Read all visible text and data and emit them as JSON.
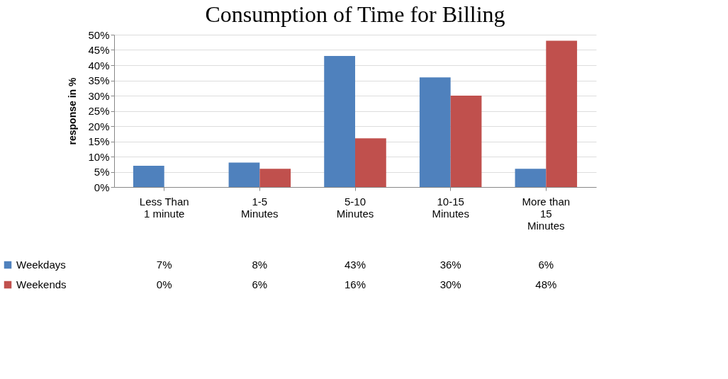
{
  "chart_data": {
    "type": "bar",
    "title": "Consumption of Time for Billing",
    "ylabel": "response in %",
    "categories": [
      "Less Than 1 minute",
      "1-5 Minutes",
      "5-10 Minutes",
      "10-15 Minutes",
      "More than 15 Minutes"
    ],
    "series": [
      {
        "name": "Weekdays",
        "color": "#4f81bd",
        "values": [
          7,
          8,
          43,
          36,
          6
        ],
        "value_labels": [
          "7%",
          "8%",
          "43%",
          "36%",
          "6%"
        ]
      },
      {
        "name": "Weekends",
        "color": "#c0504d",
        "values": [
          0,
          6,
          16,
          30,
          48
        ],
        "value_labels": [
          "0%",
          "6%",
          "16%",
          "30%",
          "48%"
        ]
      }
    ],
    "ylim": [
      0,
      50
    ],
    "yticks": [
      {
        "value": 0,
        "label": "0%"
      },
      {
        "value": 5,
        "label": "5%"
      },
      {
        "value": 10,
        "label": "10%"
      },
      {
        "value": 15,
        "label": "15%"
      },
      {
        "value": 20,
        "label": "20%"
      },
      {
        "value": 25,
        "label": "25%"
      },
      {
        "value": 30,
        "label": "30%"
      },
      {
        "value": 35,
        "label": "35%"
      },
      {
        "value": 40,
        "label": "40%"
      },
      {
        "value": 45,
        "label": "45%"
      },
      {
        "value": 50,
        "label": "50%"
      }
    ],
    "grid": "y",
    "legend": "bottom left"
  }
}
